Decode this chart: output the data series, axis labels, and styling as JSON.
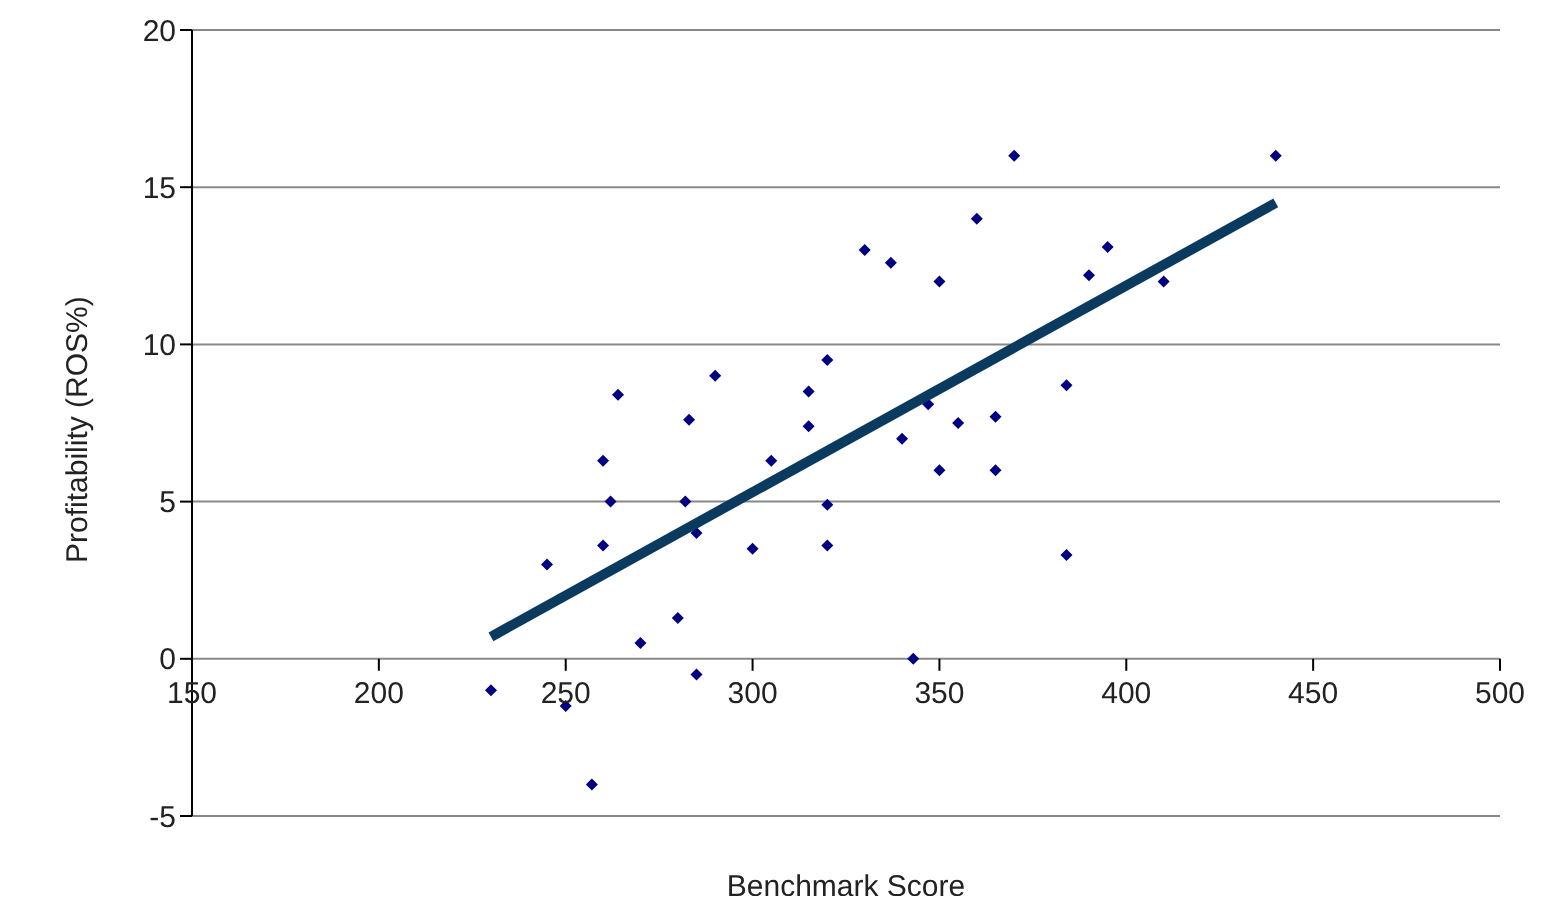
{
  "chart_data": {
    "type": "scatter",
    "xlabel": "Benchmark Score",
    "ylabel": "Profitability (ROS%)",
    "xlim": [
      150,
      500
    ],
    "xticks": [
      150,
      200,
      250,
      300,
      350,
      400,
      450,
      500
    ],
    "ylim": [
      -5,
      20
    ],
    "yticks": [
      -5,
      0,
      5,
      10,
      15,
      20
    ],
    "grid": "y",
    "series": [
      {
        "marker": "diamond",
        "color": "#000080",
        "x": [
          230,
          245,
          250,
          257,
          260,
          260,
          262,
          264,
          270,
          280,
          282,
          283,
          285,
          285,
          290,
          300,
          305,
          315,
          315,
          320,
          320,
          320,
          330,
          337,
          340,
          343,
          347,
          350,
          350,
          355,
          360,
          365,
          365,
          370,
          384,
          384,
          390,
          395,
          410,
          440
        ],
        "values": [
          -1.0,
          3.0,
          -1.5,
          -4.0,
          6.3,
          3.6,
          5.0,
          8.4,
          0.5,
          1.3,
          5.0,
          7.6,
          4.0,
          -0.5,
          9.0,
          3.5,
          6.3,
          8.5,
          7.4,
          9.5,
          4.9,
          3.6,
          13.0,
          12.6,
          7.0,
          0.0,
          8.1,
          12.0,
          6.0,
          7.5,
          14.0,
          7.7,
          6.0,
          16.0,
          8.7,
          3.3,
          12.2,
          13.1,
          12.0,
          16.0
        ]
      },
      {
        "type": "line",
        "marker": "none",
        "color": "#0b3a5f",
        "x": [
          230,
          440
        ],
        "values": [
          0.7,
          14.5
        ]
      }
    ]
  }
}
